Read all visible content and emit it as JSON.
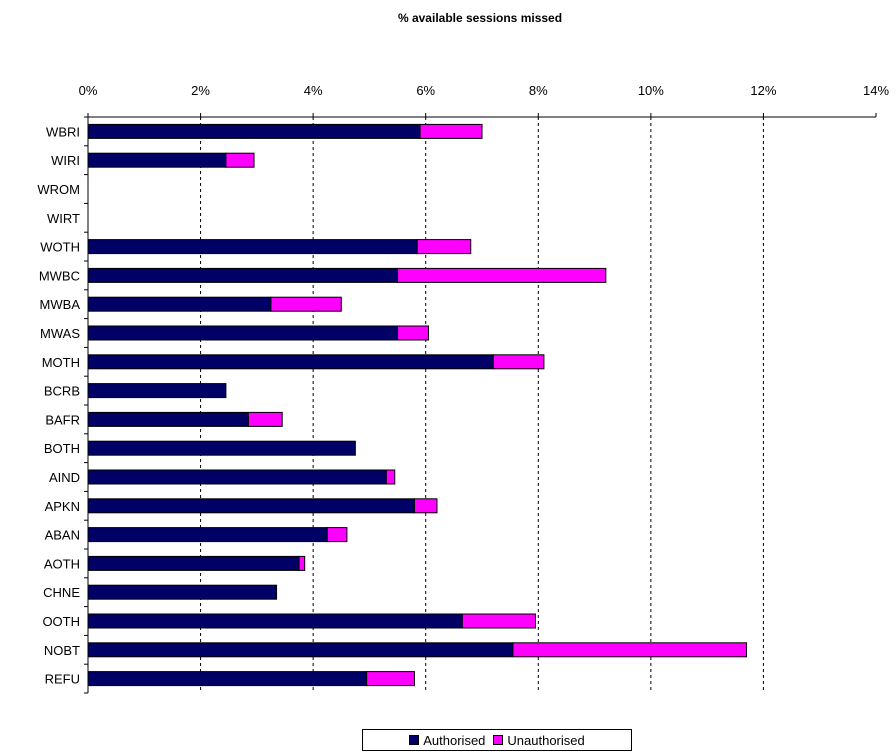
{
  "chart_data": {
    "type": "bar",
    "orientation": "horizontal",
    "stacked": true,
    "title": "% available sessions missed",
    "categories": [
      "WBRI",
      "WIRI",
      "WROM",
      "WIRT",
      "WOTH",
      "MWBC",
      "MWBA",
      "MWAS",
      "MOTH",
      "BCRB",
      "BAFR",
      "BOTH",
      "AIND",
      "APKN",
      "ABAN",
      "AOTH",
      "CHNE",
      "OOTH",
      "NOBT",
      "REFU"
    ],
    "series": [
      {
        "name": "Authorised",
        "color": "#000066",
        "values": [
          5.9,
          2.45,
          0,
          0,
          5.85,
          5.5,
          3.25,
          5.5,
          7.2,
          2.45,
          2.85,
          4.75,
          5.3,
          5.8,
          4.25,
          3.75,
          3.35,
          6.65,
          7.55,
          4.95
        ]
      },
      {
        "name": "Unauthorised",
        "color": "#ff00ff",
        "values": [
          1.1,
          0.5,
          0,
          0,
          0.95,
          3.7,
          1.25,
          0.55,
          0.9,
          0,
          0.6,
          0,
          0.15,
          0.4,
          0.35,
          0.1,
          0,
          1.3,
          4.15,
          0.85
        ]
      }
    ],
    "xlim": [
      0,
      14
    ],
    "xticks": [
      "0%",
      "2%",
      "4%",
      "6%",
      "8%",
      "10%",
      "12%",
      "14%"
    ],
    "x_axis_position": "top",
    "grid": "vertical-dashed",
    "legend_position": "bottom-center"
  }
}
